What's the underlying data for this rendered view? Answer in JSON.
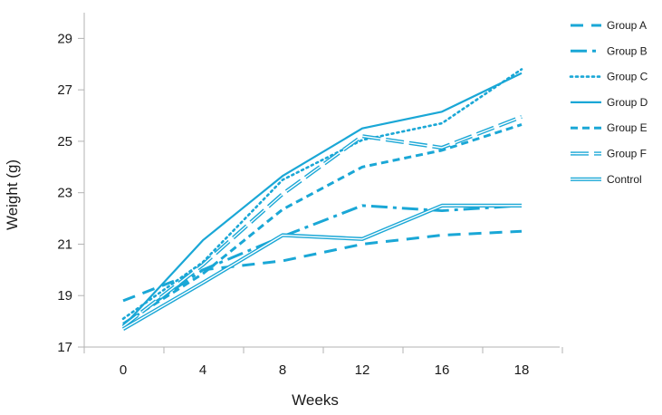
{
  "chart_data": {
    "type": "line",
    "title": "",
    "xlabel": "Weeks",
    "ylabel": "Weight (g)",
    "categories": [
      "0",
      "4",
      "8",
      "12",
      "16",
      "18"
    ],
    "ylim": [
      17,
      30
    ],
    "yticks": [
      17,
      19,
      21,
      23,
      25,
      27,
      29
    ],
    "grid": false,
    "legend_position": "right",
    "series_color": "#1aa7d6",
    "series": [
      {
        "name": "Group A",
        "style": "dashed-long",
        "values": [
          18.8,
          20.0,
          20.35,
          21.0,
          21.35,
          21.5
        ]
      },
      {
        "name": "Group B",
        "style": "dash-dot",
        "values": [
          17.9,
          20.0,
          21.3,
          22.5,
          22.3,
          22.5
        ]
      },
      {
        "name": "Group C",
        "style": "dotted",
        "values": [
          18.1,
          20.3,
          23.5,
          25.05,
          25.7,
          27.8
        ]
      },
      {
        "name": "Group D",
        "style": "solid",
        "values": [
          17.8,
          21.15,
          23.65,
          25.5,
          26.15,
          27.65
        ]
      },
      {
        "name": "Group E",
        "style": "dashed",
        "values": [
          17.9,
          19.85,
          22.35,
          24.0,
          24.65,
          25.65
        ]
      },
      {
        "name": "Group F",
        "style": "double-dashed",
        "values": [
          17.8,
          20.2,
          22.95,
          25.2,
          24.75,
          25.95
        ]
      },
      {
        "name": "Control",
        "style": "double",
        "values": [
          17.7,
          19.5,
          21.35,
          21.2,
          22.5,
          22.5
        ]
      }
    ]
  }
}
